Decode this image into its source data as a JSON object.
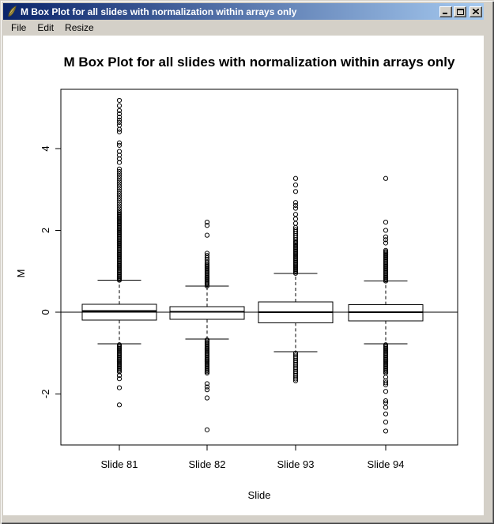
{
  "window": {
    "title": "M Box Plot for all slides with normalization within arrays only",
    "icons": {
      "app": "feather-icon",
      "minimize": "minimize-icon",
      "maximize": "maximize-icon",
      "close": "close-icon"
    }
  },
  "menu": {
    "items": [
      "File",
      "Edit",
      "Resize"
    ]
  },
  "colors": {
    "titlebar_left": "#0a246a",
    "titlebar_right": "#a6caf0",
    "chrome": "#d4d0c8",
    "plot_background": "#ffffff",
    "plot_stroke": "#000000"
  },
  "chart_data": {
    "type": "boxplot",
    "title": "M Box Plot for all slides with normalization within arrays only",
    "xlabel": "Slide",
    "ylabel": "M",
    "categories": [
      "Slide 81",
      "Slide 82",
      "Slide 93",
      "Slide 94"
    ],
    "y_ticks": [
      -2,
      0,
      2,
      4
    ],
    "ylim": [
      -3.25,
      5.45
    ],
    "reference_line_y": 0,
    "grid": false,
    "boxes": [
      {
        "label": "Slide 81",
        "q1": -0.2,
        "median": 0.03,
        "q3": 0.19,
        "whisker_low": -0.78,
        "whisker_high": 0.78,
        "outliers_high": [
          {
            "t": "dense",
            "from": 0.78,
            "to": 2.45,
            "step": 0.03
          },
          {
            "t": "dense",
            "from": 2.48,
            "to": 3.55,
            "step": 0.06
          },
          {
            "t": "pts",
            "v": [
              3.66,
              3.75,
              3.84,
              3.93,
              4.08,
              4.14,
              4.41,
              4.47,
              4.57,
              4.64,
              4.7,
              4.77,
              4.85,
              4.93,
              5.05,
              5.18
            ]
          }
        ],
        "outliers_low": [
          {
            "t": "dense",
            "from": -1.46,
            "to": -0.78,
            "step": 0.03
          },
          {
            "t": "pts",
            "v": [
              -1.55,
              -1.63,
              -1.85,
              -2.27
            ]
          }
        ]
      },
      {
        "label": "Slide 82",
        "q1": -0.18,
        "median": 0.01,
        "q3": 0.13,
        "whisker_low": -0.66,
        "whisker_high": 0.64,
        "outliers_high": [
          {
            "t": "dense",
            "from": 0.64,
            "to": 1.2,
            "step": 0.03
          },
          {
            "t": "dense",
            "from": 1.22,
            "to": 1.44,
            "step": 0.055
          },
          {
            "t": "pts",
            "v": [
              1.88,
              2.12,
              2.2
            ]
          }
        ],
        "outliers_low": [
          {
            "t": "dense",
            "from": -1.49,
            "to": -0.66,
            "step": 0.03
          },
          {
            "t": "pts",
            "v": [
              -1.75,
              -1.83,
              -1.9,
              -2.1,
              -2.88
            ]
          }
        ]
      },
      {
        "label": "Slide 93",
        "q1": -0.26,
        "median": 0.0,
        "q3": 0.25,
        "whisker_low": -0.97,
        "whisker_high": 0.95,
        "outliers_high": [
          {
            "t": "dense",
            "from": 0.95,
            "to": 1.7,
            "step": 0.03
          },
          {
            "t": "dense",
            "from": 1.72,
            "to": 2.08,
            "step": 0.05
          },
          {
            "t": "pts",
            "v": [
              2.17,
              2.28,
              2.39,
              2.54,
              2.61,
              2.68,
              2.95,
              3.11,
              3.27
            ]
          }
        ],
        "outliers_low": [
          {
            "t": "dense",
            "from": -1.68,
            "to": -0.97,
            "step": 0.045
          }
        ]
      },
      {
        "label": "Slide 94",
        "q1": -0.21,
        "median": 0.0,
        "q3": 0.18,
        "whisker_low": -0.78,
        "whisker_high": 0.76,
        "outliers_high": [
          {
            "t": "dense",
            "from": 0.76,
            "to": 1.52,
            "step": 0.03
          },
          {
            "t": "pts",
            "v": [
              1.69,
              1.77,
              1.84,
              2.0,
              2.2,
              3.27
            ]
          }
        ],
        "outliers_low": [
          {
            "t": "dense",
            "from": -1.49,
            "to": -0.78,
            "step": 0.03
          },
          {
            "t": "pts",
            "v": [
              -1.59,
              -1.68,
              -1.73,
              -1.78,
              -1.94,
              -2.17,
              -2.22,
              -2.33,
              -2.49,
              -2.69,
              -2.91
            ]
          }
        ]
      }
    ]
  }
}
